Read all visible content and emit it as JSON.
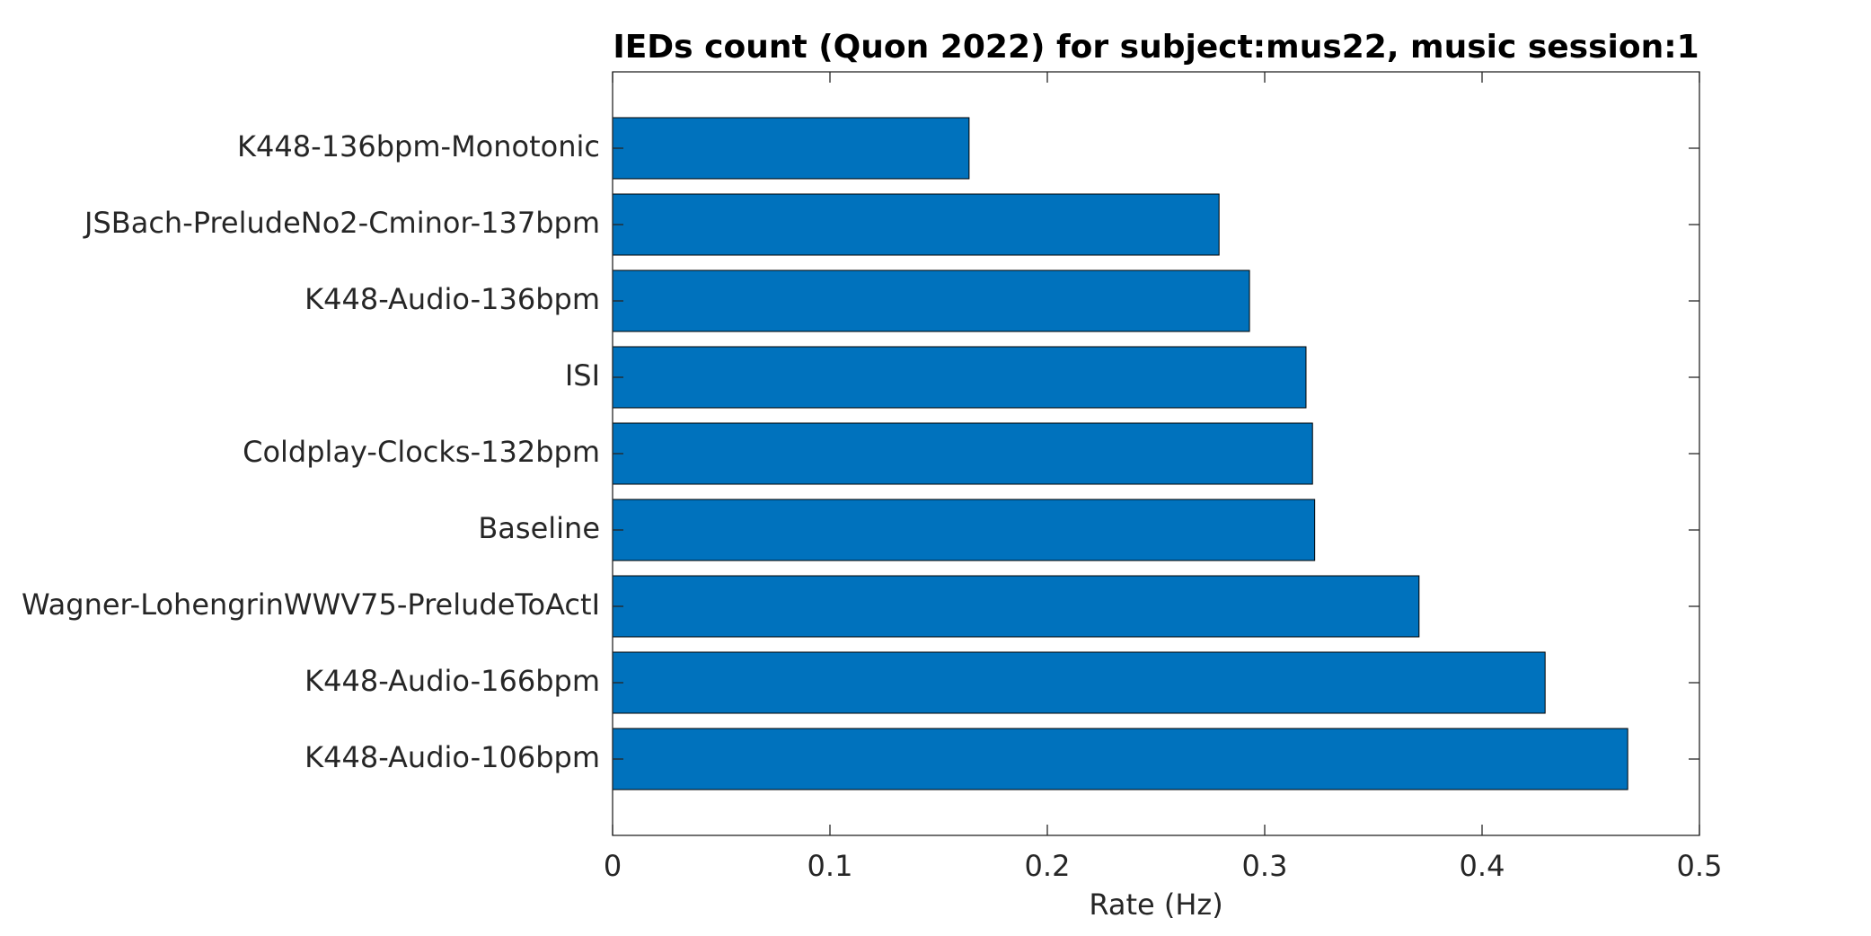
{
  "chart_data": {
    "type": "bar",
    "orientation": "horizontal",
    "title": "IEDs count (Quon 2022) for subject:mus22, music session:1",
    "xlabel": "Rate (Hz)",
    "ylabel": "",
    "xlim": [
      0,
      0.5
    ],
    "xticks": [
      "0",
      "0.1",
      "0.2",
      "0.3",
      "0.4",
      "0.5"
    ],
    "categories": [
      "K448-136bpm-Monotonic",
      "JSBach-PreludeNo2-Cminor-137bpm",
      "K448-Audio-136bpm",
      "ISI",
      "Coldplay-Clocks-132bpm",
      "Baseline",
      "Wagner-LohengrinWWV75-PreludeToActI",
      "K448-Audio-166bpm",
      "K448-Audio-106bpm"
    ],
    "values": [
      0.164,
      0.279,
      0.293,
      0.319,
      0.322,
      0.323,
      0.371,
      0.429,
      0.467
    ],
    "bar_color": "#0072BD",
    "grid": false,
    "legend": "none"
  }
}
